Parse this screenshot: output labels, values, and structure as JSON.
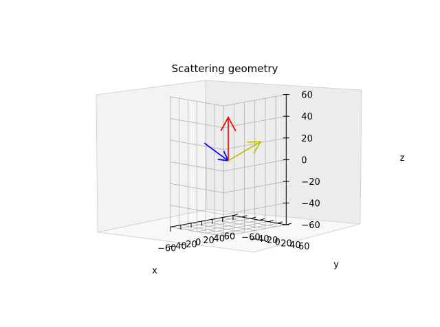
{
  "chart_data": {
    "type": "3d-vector",
    "title": "Scattering geometry",
    "xlabel": "x",
    "ylabel": "y",
    "zlabel": "z",
    "xlim": [
      -60,
      60
    ],
    "ylim": [
      -60,
      60
    ],
    "zlim": [
      -60,
      60
    ],
    "xticks": [
      -60,
      -40,
      -20,
      0,
      20,
      40,
      60
    ],
    "yticks": [
      -60,
      -40,
      -20,
      0,
      20,
      40,
      60
    ],
    "zticks": [
      -60,
      -40,
      -20,
      0,
      20,
      40,
      60
    ],
    "grid": true,
    "vectors": [
      {
        "color": "#0000ff",
        "start": [
          -45,
          0,
          20
        ],
        "end": [
          0,
          0,
          0
        ]
      },
      {
        "color": "#ff0000",
        "start": [
          0,
          0,
          0
        ],
        "end": [
          0,
          0,
          40
        ]
      },
      {
        "color": "#bfbf00",
        "start": [
          0,
          0,
          0
        ],
        "end": [
          45,
          20,
          15
        ]
      }
    ]
  }
}
